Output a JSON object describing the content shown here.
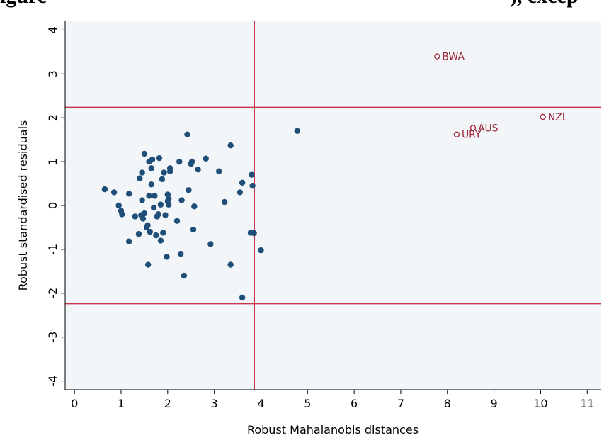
{
  "header": {
    "title_left": "igure",
    "title_right": "), excep"
  },
  "colors": {
    "plot_background": "#f3f6f9",
    "point": "#1f4e79",
    "outlier": "#9b2335",
    "reference_line": "#c8344e"
  },
  "chart_data": {
    "type": "scatter",
    "title": "",
    "xlabel": "Robust Mahalanobis distances",
    "ylabel": "Robust standardised residuals",
    "xlim": [
      -0.2,
      11.3
    ],
    "ylim": [
      -4.2,
      4.2
    ],
    "xticks": [
      0,
      1,
      2,
      3,
      4,
      5,
      6,
      7,
      8,
      9,
      10,
      11
    ],
    "yticks": [
      -4,
      -3,
      -2,
      -1,
      0,
      1,
      2,
      3,
      4
    ],
    "grid": false,
    "reference_lines": {
      "vertical_x": [
        3.86
      ],
      "horizontal_y": [
        2.24,
        -2.24
      ]
    },
    "series": [
      {
        "marker": "filled-circle",
        "points": [
          [
            0.65,
            0.37
          ],
          [
            0.85,
            0.3
          ],
          [
            0.95,
            0.0
          ],
          [
            1.0,
            -0.12
          ],
          [
            1.02,
            -0.2
          ],
          [
            1.17,
            0.27
          ],
          [
            1.17,
            -0.82
          ],
          [
            1.3,
            -0.25
          ],
          [
            1.38,
            -0.65
          ],
          [
            1.4,
            0.62
          ],
          [
            1.43,
            -0.22
          ],
          [
            1.45,
            0.75
          ],
          [
            1.45,
            0.12
          ],
          [
            1.47,
            -0.3
          ],
          [
            1.5,
            1.18
          ],
          [
            1.5,
            -0.18
          ],
          [
            1.55,
            -0.5
          ],
          [
            1.57,
            -0.45
          ],
          [
            1.58,
            -1.35
          ],
          [
            1.6,
            1.0
          ],
          [
            1.6,
            0.22
          ],
          [
            1.62,
            -0.6
          ],
          [
            1.65,
            0.85
          ],
          [
            1.65,
            0.48
          ],
          [
            1.67,
            1.05
          ],
          [
            1.7,
            -0.05
          ],
          [
            1.72,
            0.22
          ],
          [
            1.75,
            -0.68
          ],
          [
            1.77,
            -0.25
          ],
          [
            1.8,
            -0.2
          ],
          [
            1.82,
            1.08
          ],
          [
            1.85,
            -0.8
          ],
          [
            1.85,
            0.02
          ],
          [
            1.88,
            0.6
          ],
          [
            1.9,
            -0.62
          ],
          [
            1.92,
            0.75
          ],
          [
            1.95,
            -0.22
          ],
          [
            1.98,
            -1.17
          ],
          [
            2.0,
            0.25
          ],
          [
            2.0,
            0.1
          ],
          [
            2.02,
            0.15
          ],
          [
            2.02,
            0.02
          ],
          [
            2.05,
            0.85
          ],
          [
            2.05,
            0.78
          ],
          [
            2.2,
            -0.35
          ],
          [
            2.25,
            1.0
          ],
          [
            2.28,
            -1.1
          ],
          [
            2.3,
            0.12
          ],
          [
            2.35,
            -1.6
          ],
          [
            2.42,
            1.62
          ],
          [
            2.45,
            0.35
          ],
          [
            2.5,
            0.95
          ],
          [
            2.52,
            1.0
          ],
          [
            2.55,
            -0.55
          ],
          [
            2.57,
            -0.02
          ],
          [
            2.65,
            0.82
          ],
          [
            2.82,
            1.07
          ],
          [
            2.92,
            -0.88
          ],
          [
            3.1,
            0.78
          ],
          [
            3.22,
            0.08
          ],
          [
            3.35,
            1.37
          ],
          [
            3.35,
            -1.35
          ],
          [
            3.55,
            0.3
          ],
          [
            3.6,
            0.52
          ],
          [
            3.6,
            -2.1
          ],
          [
            3.78,
            -0.62
          ],
          [
            3.8,
            0.7
          ],
          [
            3.82,
            0.45
          ],
          [
            3.85,
            -0.63
          ],
          [
            4.0,
            -1.02
          ],
          [
            4.78,
            1.7
          ]
        ]
      },
      {
        "marker": "hollow-circle",
        "points": [
          {
            "x": 7.78,
            "y": 3.4,
            "label": "BWA"
          },
          {
            "x": 8.55,
            "y": 1.77,
            "label": "AUS"
          },
          {
            "x": 8.2,
            "y": 1.62,
            "label": "URY"
          },
          {
            "x": 10.05,
            "y": 2.02,
            "label": "NZL"
          }
        ]
      }
    ]
  }
}
